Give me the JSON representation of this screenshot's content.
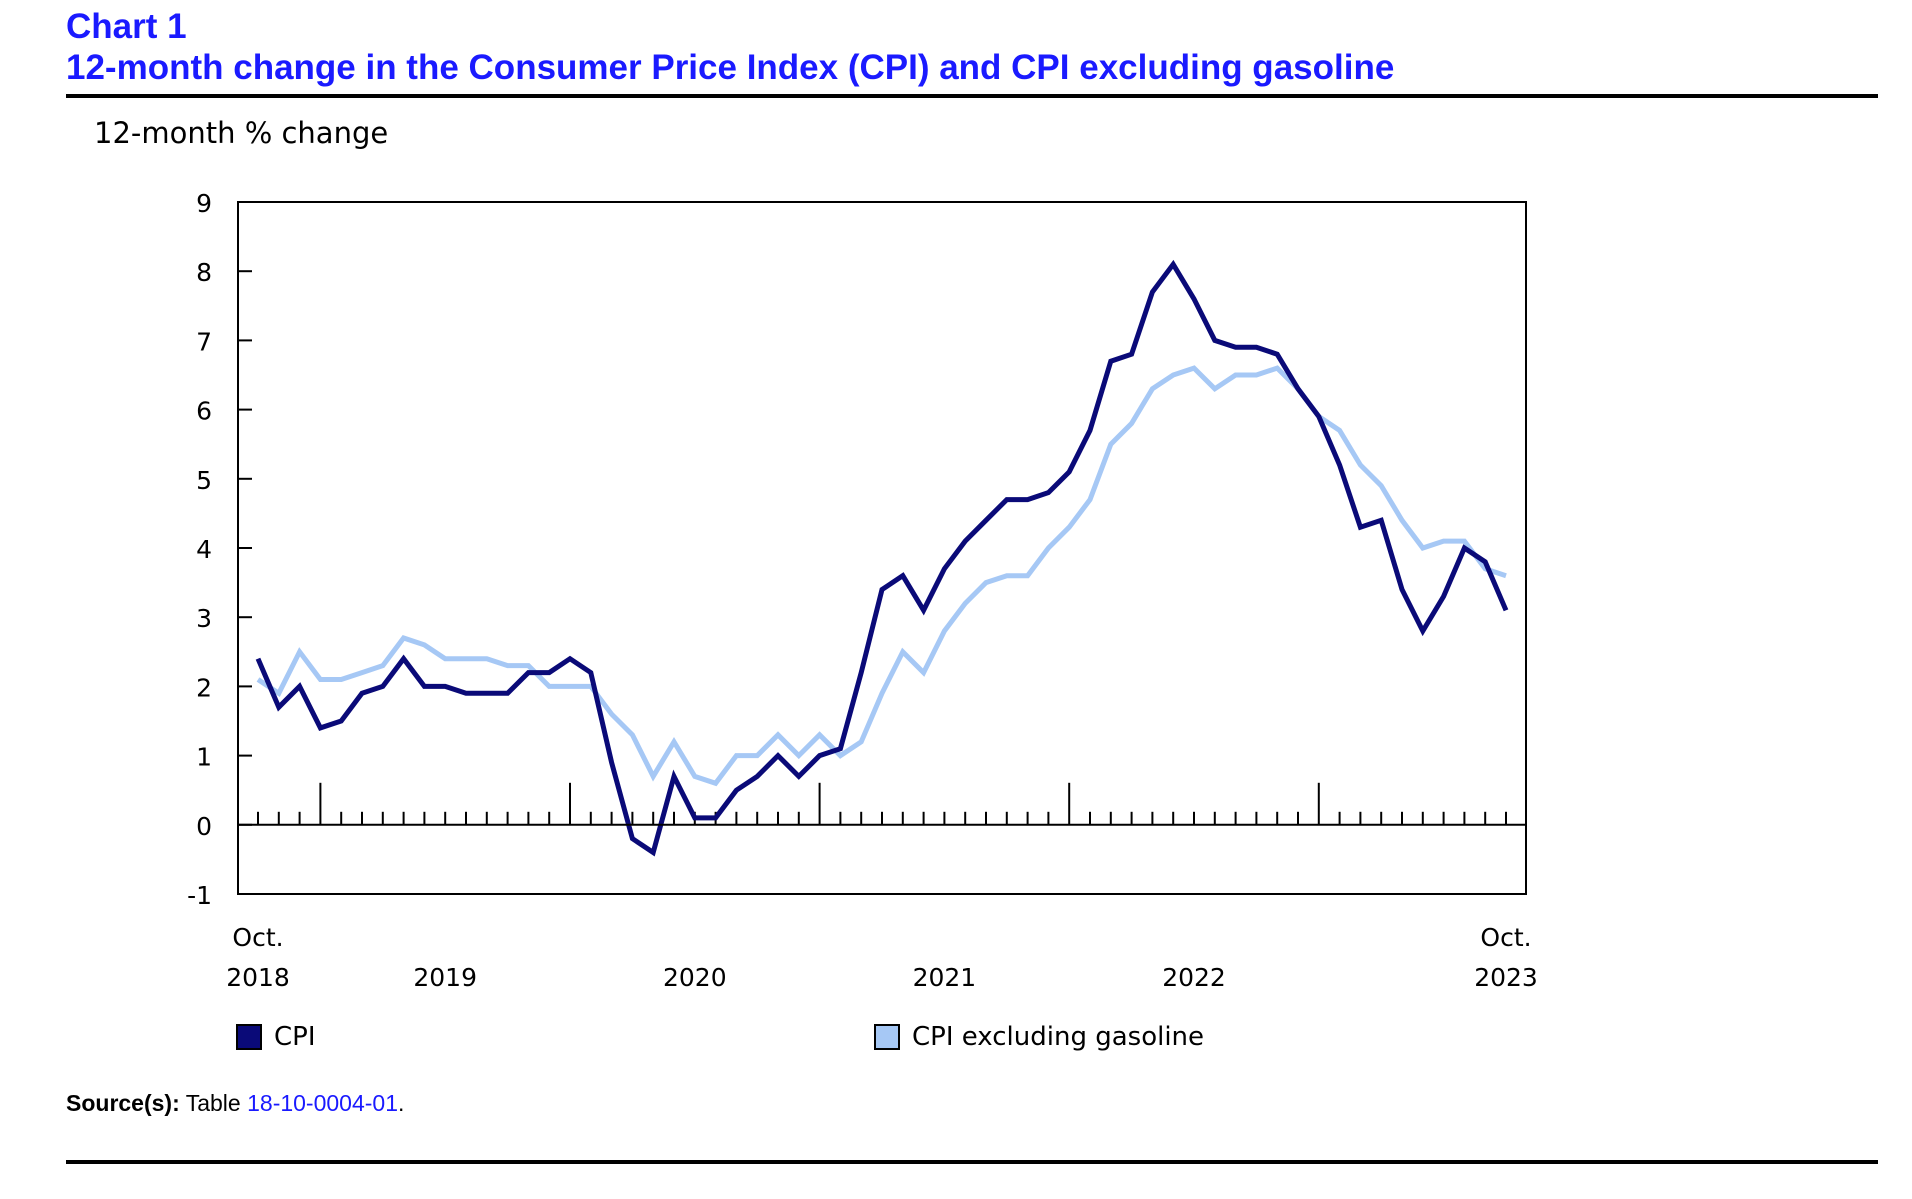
{
  "header": {
    "chart_label": "Chart 1",
    "title": "12-month change in the Consumer Price Index (CPI) and CPI excluding gasoline"
  },
  "chart_data": {
    "type": "line",
    "title": "12-month change in the Consumer Price Index (CPI) and CPI excluding gasoline",
    "ylabel": "12-month % change",
    "xlabel": "",
    "ylim": [
      -1,
      9
    ],
    "yticks": [
      -1,
      0,
      1,
      2,
      3,
      4,
      5,
      6,
      7,
      8,
      9
    ],
    "x_start": "2018-10",
    "x_end": "2023-10",
    "x_tick_labels": [
      {
        "month": "2018-10",
        "line1": "Oct.",
        "line2": "2018"
      },
      {
        "month": "2019-07",
        "line1": "",
        "line2": "2019"
      },
      {
        "month": "2020-07",
        "line1": "",
        "line2": "2020"
      },
      {
        "month": "2021-07",
        "line1": "",
        "line2": "2021"
      },
      {
        "month": "2022-07",
        "line1": "",
        "line2": "2022"
      },
      {
        "month": "2023-10",
        "line1": "Oct.",
        "line2": "2023"
      }
    ],
    "grid": false,
    "legend_position": "bottom",
    "series": [
      {
        "name": "CPI",
        "color": "#0a0a78",
        "values": [
          2.4,
          1.7,
          2.0,
          1.4,
          1.5,
          1.9,
          2.0,
          2.4,
          2.0,
          2.0,
          1.9,
          1.9,
          1.9,
          2.2,
          2.2,
          2.4,
          2.2,
          0.9,
          -0.2,
          -0.4,
          0.7,
          0.1,
          0.1,
          0.5,
          0.7,
          1.0,
          0.7,
          1.0,
          1.1,
          2.2,
          3.4,
          3.6,
          3.1,
          3.7,
          4.1,
          4.4,
          4.7,
          4.7,
          4.8,
          5.1,
          5.7,
          6.7,
          6.8,
          7.7,
          8.1,
          7.6,
          7.0,
          6.9,
          6.9,
          6.8,
          6.3,
          5.9,
          5.2,
          4.3,
          4.4,
          3.4,
          2.8,
          3.3,
          4.0,
          3.8,
          3.1
        ]
      },
      {
        "name": "CPI excluding gasoline",
        "color": "#a6c8f5",
        "values": [
          2.1,
          1.9,
          2.5,
          2.1,
          2.1,
          2.2,
          2.3,
          2.7,
          2.6,
          2.4,
          2.4,
          2.4,
          2.3,
          2.3,
          2.0,
          2.0,
          2.0,
          1.6,
          1.3,
          0.7,
          1.2,
          0.7,
          0.6,
          1.0,
          1.0,
          1.3,
          1.0,
          1.3,
          1.0,
          1.2,
          1.9,
          2.5,
          2.2,
          2.8,
          3.2,
          3.5,
          3.6,
          3.6,
          4.0,
          4.3,
          4.7,
          5.5,
          5.8,
          6.3,
          6.5,
          6.6,
          6.3,
          6.5,
          6.5,
          6.6,
          6.3,
          5.9,
          5.7,
          5.2,
          4.9,
          4.4,
          4.0,
          4.1,
          4.1,
          3.7,
          3.6
        ]
      }
    ]
  },
  "source": {
    "label": "Source(s):",
    "text": " Table ",
    "link": "18-10-0004-01",
    "end": "."
  }
}
